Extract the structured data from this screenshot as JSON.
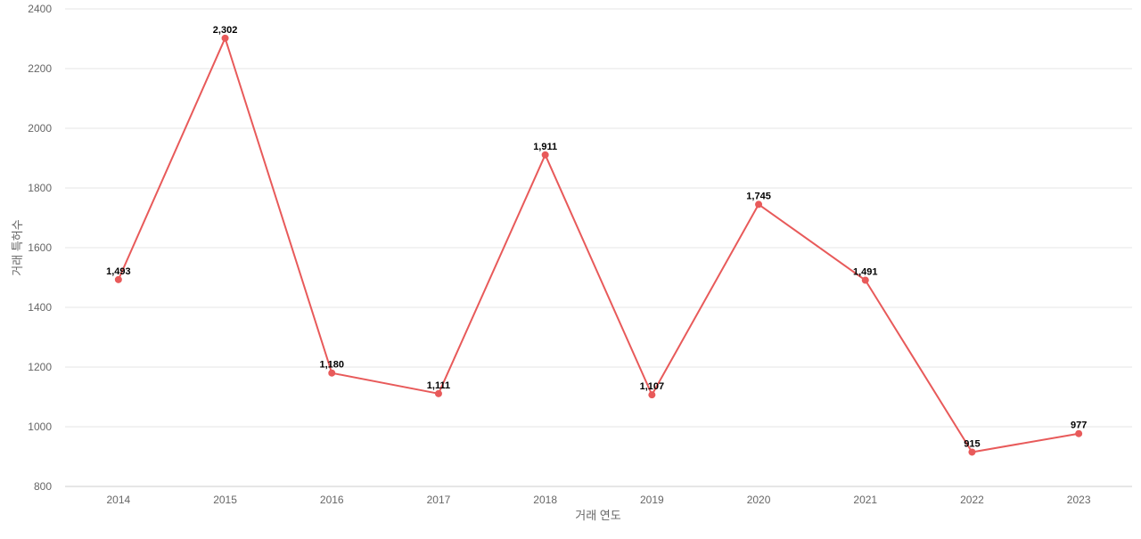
{
  "chart_data": {
    "type": "line",
    "title": "",
    "xlabel": "거래 연도",
    "ylabel": "거래 특허수",
    "categories": [
      "2014",
      "2015",
      "2016",
      "2017",
      "2018",
      "2019",
      "2020",
      "2021",
      "2022",
      "2023"
    ],
    "series": [
      {
        "values": [
          1493,
          2302,
          1180,
          1111,
          1911,
          1107,
          1745,
          1491,
          915,
          977
        ],
        "labels": [
          "1,493",
          "2,302",
          "1,180",
          "1,111",
          "1,911",
          "1,107",
          "1,745",
          "1,491",
          "915",
          "977"
        ],
        "color": "#e85a5a"
      }
    ],
    "ylim": [
      800,
      2400
    ],
    "yticks": [
      "800",
      "1000",
      "1200",
      "1400",
      "1600",
      "1800",
      "2000",
      "2200",
      "2400"
    ],
    "grid": true,
    "legend": "none"
  }
}
